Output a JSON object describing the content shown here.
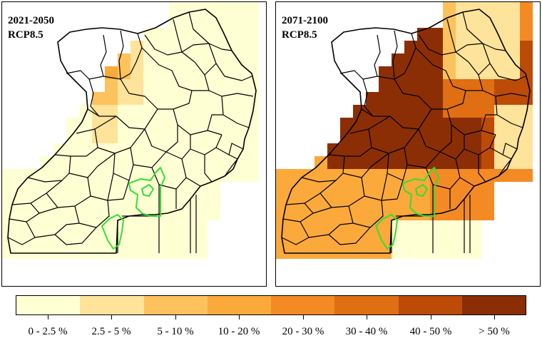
{
  "panels": [
    {
      "period": "2021-2050",
      "scenario": "RCP8.5"
    },
    {
      "period": "2071-2100",
      "scenario": "RCP8.5"
    }
  ],
  "legend": {
    "classes": [
      {
        "label": "0 - 2.5 %",
        "color": "#ffffd4"
      },
      {
        "label": "2.5 - 5 %",
        "color": "#fee39a"
      },
      {
        "label": "5 - 10 %",
        "color": "#fdc25e"
      },
      {
        "label": "10 - 20 %",
        "color": "#fba93a"
      },
      {
        "label": "20 - 30 %",
        "color": "#f48a24"
      },
      {
        "label": "30 - 40 %",
        "color": "#e06e12"
      },
      {
        "label": "40 - 50 %",
        "color": "#bd4b08"
      },
      {
        "label": "> 50 %",
        "color": "#8b2e05"
      }
    ]
  },
  "colors": {
    "boundary": "#000000",
    "protected_area_outline": "#33dd33"
  }
}
